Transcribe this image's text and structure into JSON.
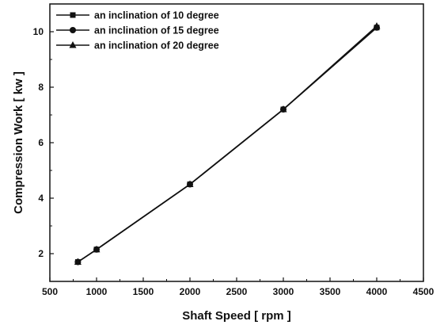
{
  "chart_data": {
    "type": "line",
    "title": "",
    "xlabel": "Shaft Speed [ rpm ]",
    "ylabel": "Compression Work [ kw ]",
    "xlim": [
      500,
      4500
    ],
    "ylim": [
      1,
      11
    ],
    "xticks": [
      "500",
      "1000",
      "1500",
      "2000",
      "2500",
      "3000",
      "3500",
      "4000",
      "4500"
    ],
    "yticks": [
      "2",
      "4",
      "6",
      "8",
      "10"
    ],
    "grid": false,
    "legend_position": "top-left",
    "series": [
      {
        "name": "an inclination of 10 degree",
        "marker": "square",
        "x": [
          800,
          1000,
          2000,
          3000,
          4000
        ],
        "y": [
          1.7,
          2.15,
          4.5,
          7.2,
          10.15
        ]
      },
      {
        "name": "an inclination of 15 degree",
        "marker": "circle",
        "x": [
          800,
          1000,
          2000,
          3000,
          4000
        ],
        "y": [
          1.7,
          2.15,
          4.5,
          7.2,
          10.15
        ]
      },
      {
        "name": "an inclination of 20 degree",
        "marker": "triangle",
        "x": [
          800,
          1000,
          2000,
          3000,
          4000
        ],
        "y": [
          1.7,
          2.15,
          4.5,
          7.2,
          10.2
        ]
      }
    ],
    "colors": {
      "line": "#111111",
      "axis": "#111111"
    }
  }
}
